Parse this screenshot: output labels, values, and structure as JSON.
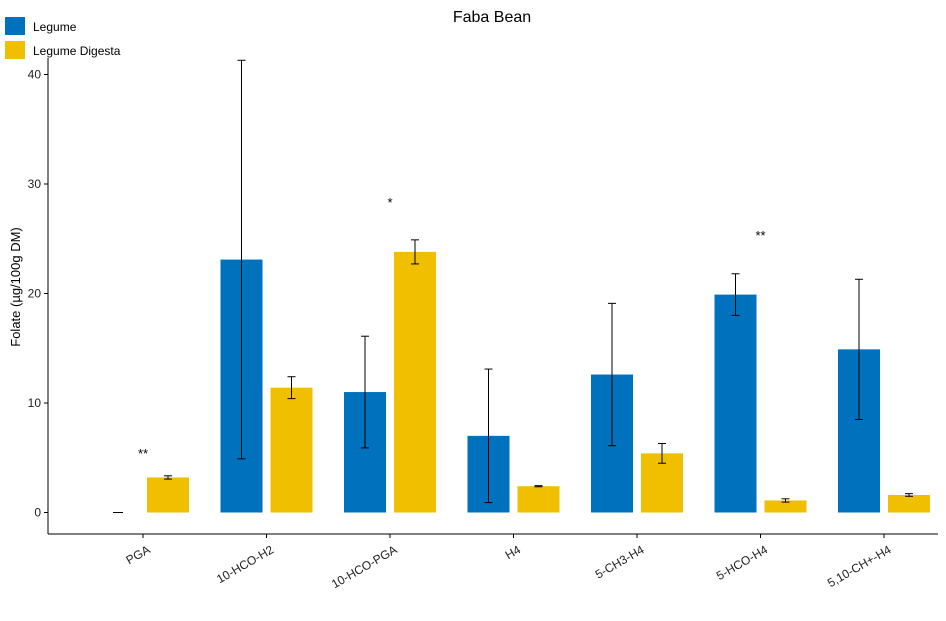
{
  "chart_data": {
    "type": "bar",
    "title": "Faba Bean",
    "xlabel": "",
    "ylabel": "Folate (µg/100g DM)",
    "ylim": [
      -2,
      42
    ],
    "yticks": [
      0,
      10,
      20,
      30,
      40
    ],
    "grid": false,
    "legend_position": "top-left",
    "categories": [
      "PGA",
      "10-HCO-H2",
      "10-HCO-PGA",
      "H4",
      "5-CH3-H4",
      "5-HCO-H4",
      "5,10-CH+-H4"
    ],
    "series": [
      {
        "name": "Legume",
        "color": "#0072BD",
        "values": [
          0,
          23.1,
          11.0,
          7.0,
          12.6,
          19.9,
          14.9
        ],
        "errors": [
          0,
          18.2,
          5.1,
          6.1,
          6.5,
          1.9,
          6.4
        ]
      },
      {
        "name": "Legume Digesta",
        "color": "#EFBF00",
        "values": [
          3.2,
          11.4,
          23.8,
          2.4,
          5.4,
          1.1,
          1.6
        ],
        "errors": [
          0.15,
          1.0,
          1.1,
          0.05,
          0.9,
          0.15,
          0.12
        ]
      }
    ],
    "annotations": [
      {
        "category": "PGA",
        "text": "**",
        "y": 5.0
      },
      {
        "category": "10-HCO-PGA",
        "text": "*",
        "y": 27.9
      },
      {
        "category": "5-HCO-H4",
        "text": "**",
        "y": 24.9
      }
    ]
  }
}
